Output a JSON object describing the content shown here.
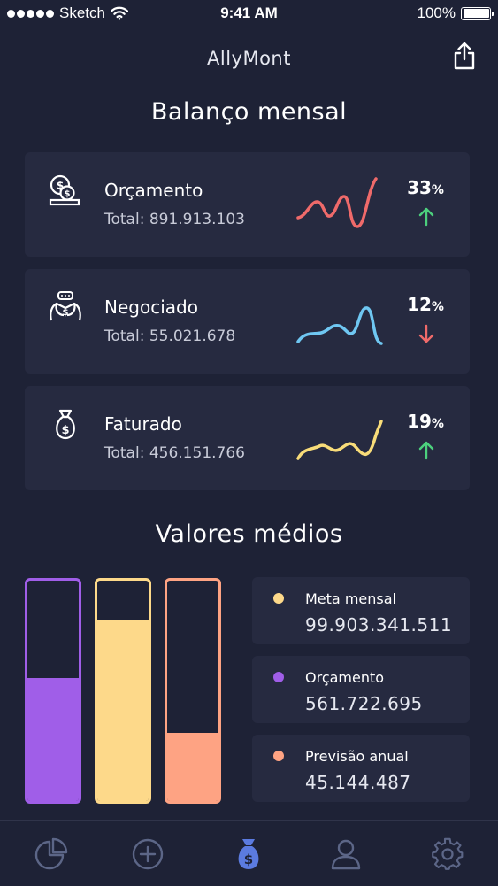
{
  "status_bar": {
    "carrier": "Sketch",
    "time": "9:41 AM",
    "battery": "100%",
    "icons": [
      "signal-dots-icon",
      "wifi-icon",
      "battery-icon"
    ]
  },
  "header": {
    "title": "AllyMont",
    "share_icon": "share-icon"
  },
  "monthly": {
    "title": "Balanço mensal",
    "cards": [
      {
        "name": "Orçamento",
        "total": "Total: 891.913.103",
        "percent": "33",
        "percent_unit": "%",
        "trend": "up",
        "icon": "money-coins-icon",
        "spark_color": "#ef6a6a",
        "arrow_color": "#4cd07d"
      },
      {
        "name": "Negociado",
        "total": "Total: 55.021.678",
        "percent": "12",
        "percent_unit": "%",
        "trend": "down",
        "icon": "handshake-icon",
        "spark_color": "#6fc7f2",
        "arrow_color": "#ef6a6a"
      },
      {
        "name": "Faturado",
        "total": "Total: 456.151.766",
        "percent": "19",
        "percent_unit": "%",
        "trend": "up",
        "icon": "money-bag-icon",
        "spark_color": "#f8dc79",
        "arrow_color": "#4cd07d"
      }
    ]
  },
  "averages": {
    "title": "Valores médios",
    "bars": [
      {
        "level": 0.56,
        "color": "#a05ee8"
      },
      {
        "level": 0.82,
        "color": "#fdd98a"
      },
      {
        "level": 0.31,
        "color": "#fea383"
      }
    ],
    "legend": [
      {
        "label": "Meta mensal",
        "value": "99.903.341.511",
        "color": "#fdd98a"
      },
      {
        "label": "Orçamento",
        "value": "561.722.695",
        "color": "#a05ee8"
      },
      {
        "label": "Previsão anual",
        "value": "45.144.487",
        "color": "#fea383"
      }
    ]
  },
  "tab_bar": {
    "active_index": 2,
    "active_color": "#5b7be0",
    "inactive_color": "#5c6687",
    "tabs": [
      {
        "icon": "pie-chart-icon"
      },
      {
        "icon": "add-circle-icon"
      },
      {
        "icon": "money-bag-icon"
      },
      {
        "icon": "user-icon"
      },
      {
        "icon": "settings-icon"
      }
    ]
  }
}
